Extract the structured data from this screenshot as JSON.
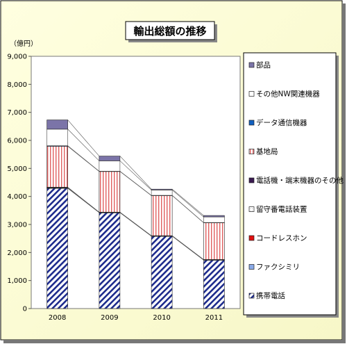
{
  "chart_data": {
    "type": "bar",
    "stacked": true,
    "title": "輸出総額の推移",
    "ylabel": "（億円）",
    "xlabel": "",
    "categories": [
      "2008",
      "2009",
      "2010",
      "2011"
    ],
    "ylim": [
      0,
      9000
    ],
    "yticks": [
      "0",
      "1,000",
      "2,000",
      "3,000",
      "4,000",
      "5,000",
      "6,000",
      "7,000",
      "8,000",
      "9,000"
    ],
    "grid": false,
    "legend_position": "right",
    "series": [
      {
        "name": "携帯電話",
        "color": "#7b74a8",
        "values": [
          4290,
          3420,
          2580,
          1730
        ]
      },
      {
        "name": "ファクシミリ",
        "color": "#8aaae8",
        "values": [
          10,
          5,
          5,
          5
        ]
      },
      {
        "name": "コードレスホン",
        "color": "#e01010",
        "values": [
          10,
          5,
          5,
          5
        ]
      },
      {
        "name": "留守番電話装置",
        "color": "#ffffe0",
        "values": [
          10,
          5,
          5,
          5
        ]
      },
      {
        "name": "電話機・端末機器のその他",
        "color": "#3a1a50",
        "values": [
          10,
          5,
          5,
          5
        ]
      },
      {
        "name": "基地局",
        "color": "#f0a0a0",
        "values": [
          1460,
          1450,
          1430,
          1310
        ]
      },
      {
        "name": "データ通信機器",
        "color": "#1060c0",
        "values": [
          20,
          10,
          10,
          10
        ]
      },
      {
        "name": "その他NW関連機器",
        "color": "#ffffff",
        "values": [
          590,
          370,
          190,
          200
        ]
      },
      {
        "name": "部品",
        "color": "#7b74a8",
        "values": [
          330,
          170,
          30,
          50
        ]
      }
    ]
  }
}
